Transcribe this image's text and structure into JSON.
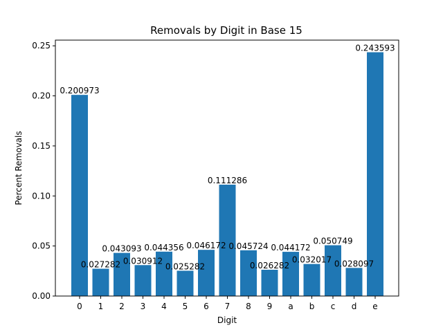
{
  "chart_data": {
    "type": "bar",
    "title": "Removals by Digit in Base 15",
    "xlabel": "Digit",
    "ylabel": "Percent Removals",
    "categories": [
      "0",
      "1",
      "2",
      "3",
      "4",
      "5",
      "6",
      "7",
      "8",
      "9",
      "a",
      "b",
      "c",
      "d",
      "e"
    ],
    "values": [
      0.200973,
      0.027282,
      0.043093,
      0.030912,
      0.044356,
      0.025282,
      0.046172,
      0.111286,
      0.045724,
      0.026282,
      0.044172,
      0.032017,
      0.050749,
      0.028097,
      0.243593
    ],
    "value_labels": [
      "0.200973",
      "0.027282",
      "0.043093",
      "0.030912",
      "0.044356",
      "0.025282",
      "0.046172",
      "0.111286",
      "0.045724",
      "0.026282",
      "0.044172",
      "0.032017",
      "0.050749",
      "0.028097",
      "0.243593"
    ],
    "ylim": [
      0,
      0.2557
    ],
    "yticks": [
      0.0,
      0.05,
      0.1,
      0.15,
      0.2,
      0.25
    ],
    "ytick_labels": [
      "0.00",
      "0.05",
      "0.10",
      "0.15",
      "0.20",
      "0.25"
    ],
    "bar_color": "#1f77b4",
    "grid": false,
    "legend": false
  }
}
